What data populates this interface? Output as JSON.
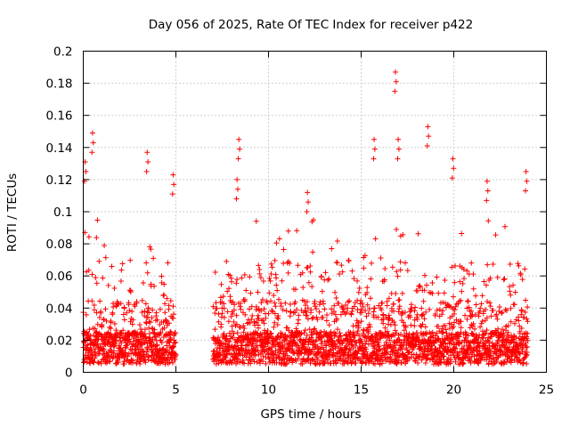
{
  "chart_data": {
    "type": "scatter",
    "title": "Day 056 of 2025, Rate Of TEC Index for receiver p422",
    "xlabel": "GPS time / hours",
    "ylabel": "ROTI / TECUs",
    "xlim": [
      0,
      25
    ],
    "ylim": [
      0,
      0.2
    ],
    "xticks": [
      "0",
      "5",
      "10",
      "15",
      "20",
      "25"
    ],
    "yticks": [
      "0",
      "0.02",
      "0.04",
      "0.06",
      "0.08",
      "0.1",
      "0.12",
      "0.14",
      "0.16",
      "0.18",
      "0.2"
    ],
    "grid": true,
    "marker": "+",
    "color": "#ff0000",
    "segments": [
      {
        "x_start": 0.0,
        "x_end": 5.0
      },
      {
        "x_start": 7.0,
        "x_end": 24.0
      }
    ],
    "notable_points": [
      {
        "x": 0.5,
        "y": 0.149
      },
      {
        "x": 0.1,
        "y": 0.131
      },
      {
        "x": 3.45,
        "y": 0.137
      },
      {
        "x": 4.85,
        "y": 0.123
      },
      {
        "x": 8.4,
        "y": 0.145
      },
      {
        "x": 8.3,
        "y": 0.12
      },
      {
        "x": 12.1,
        "y": 0.112
      },
      {
        "x": 15.7,
        "y": 0.145
      },
      {
        "x": 16.85,
        "y": 0.187
      },
      {
        "x": 17.0,
        "y": 0.145
      },
      {
        "x": 18.6,
        "y": 0.153
      },
      {
        "x": 19.95,
        "y": 0.133
      },
      {
        "x": 21.8,
        "y": 0.119
      },
      {
        "x": 23.9,
        "y": 0.125
      }
    ]
  }
}
